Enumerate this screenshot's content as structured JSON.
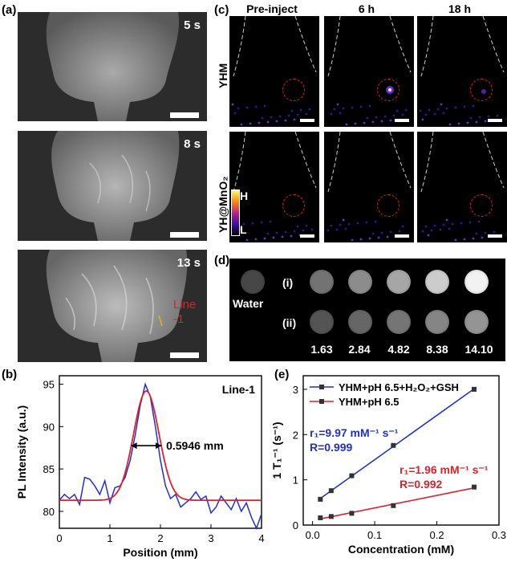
{
  "panel_a": {
    "label": "(a)",
    "frames": [
      {
        "time": "5 s"
      },
      {
        "time": "8 s"
      },
      {
        "time": "13 s"
      }
    ],
    "line_label": "Line\n-1"
  },
  "panel_b": {
    "label": "(b)"
  },
  "panel_c": {
    "label": "(c)",
    "columns": [
      "Pre-inject",
      "6 h",
      "18 h"
    ],
    "rows": [
      "YHM",
      "YH@MnO₂"
    ],
    "colorbar_high": "H",
    "colorbar_low": "L"
  },
  "panel_d": {
    "label": "(d)",
    "water_label": "Water",
    "row_labels": [
      "(i)",
      "(ii)"
    ],
    "concentrations": [
      "1.63",
      "2.84",
      "4.82",
      "8.38",
      "14.10"
    ],
    "row_i_brightness": [
      0.45,
      0.55,
      0.65,
      0.8,
      0.95
    ],
    "row_ii_brightness": [
      0.33,
      0.4,
      0.46,
      0.52,
      0.58
    ],
    "water_brightness": 0.28
  },
  "panel_e": {
    "label": "(e)"
  },
  "chart_data": [
    {
      "type": "line",
      "panel": "(b)",
      "xlabel": "Position (mm)",
      "ylabel": "PL Intensity (a.u.)",
      "xlim": [
        0,
        4
      ],
      "ylim": [
        78,
        96
      ],
      "xticks": [
        "0",
        "1",
        "2",
        "3",
        "4"
      ],
      "yticks": [
        "80",
        "85",
        "90",
        "95"
      ],
      "annotation_line": "Line-1",
      "annotation_fwhm": "0.5946 mm",
      "series": [
        {
          "color": "#1f2fd6",
          "x": [
            0,
            0.1,
            0.2,
            0.3,
            0.4,
            0.5,
            0.6,
            0.7,
            0.8,
            0.9,
            1.0,
            1.1,
            1.2,
            1.3,
            1.4,
            1.5,
            1.6,
            1.7,
            1.8,
            1.9,
            2.0,
            2.1,
            2.2,
            2.3,
            2.4,
            2.5,
            2.6,
            2.7,
            2.8,
            2.9,
            3.0,
            3.1,
            3.2,
            3.3,
            3.4,
            3.5,
            3.6,
            3.7,
            3.8,
            3.9,
            4.0
          ],
          "y": [
            81.3,
            82.0,
            81.5,
            82.0,
            80.8,
            84.0,
            83.8,
            83.0,
            82.0,
            83.6,
            81.0,
            82.8,
            83.0,
            84.0,
            86.0,
            89.0,
            92.5,
            95.0,
            93.5,
            90.0,
            86.0,
            83.0,
            81.5,
            82.0,
            80.5,
            81.0,
            81.5,
            82.3,
            81.4,
            81.8,
            79.8,
            80.5,
            81.8,
            81.0,
            80.2,
            81.5,
            80.0,
            81.0,
            79.3,
            78.0,
            79.7
          ]
        },
        {
          "color": "#e0202a",
          "kind": "gaussian_fit",
          "baseline": 81.3,
          "peak": 94.2,
          "center": 1.72,
          "fwhm_mm": 0.5946
        }
      ]
    },
    {
      "type": "scatter",
      "panel": "(e)",
      "xlabel": "Concentration (mM)",
      "ylabel": "1 T₁⁻¹ (s⁻¹)",
      "xlim": [
        -0.015,
        0.3
      ],
      "ylim": [
        0,
        3.3
      ],
      "xticks": [
        "0.0",
        "0.1",
        "0.2",
        "0.3"
      ],
      "yticks": [
        "0",
        "1",
        "2",
        "3"
      ],
      "legend_position": "top",
      "series": [
        {
          "name": "YHM+pH 6.5+H₂O₂+GSH",
          "color": "#1f2fd6",
          "x": [
            0.0125,
            0.03,
            0.063,
            0.13,
            0.26
          ],
          "y": [
            0.57,
            0.76,
            1.09,
            1.76,
            3.0
          ],
          "r1": "r₁=9.97 mM⁻¹ s⁻¹",
          "R": "R=0.999"
        },
        {
          "name": "YHM+pH 6.5",
          "color": "#e0202a",
          "x": [
            0.0125,
            0.03,
            0.063,
            0.13,
            0.26
          ],
          "y": [
            0.16,
            0.19,
            0.26,
            0.43,
            0.84
          ],
          "r1": "r₁=1.96 mM⁻¹ s⁻¹",
          "R": "R=0.992"
        }
      ]
    }
  ]
}
